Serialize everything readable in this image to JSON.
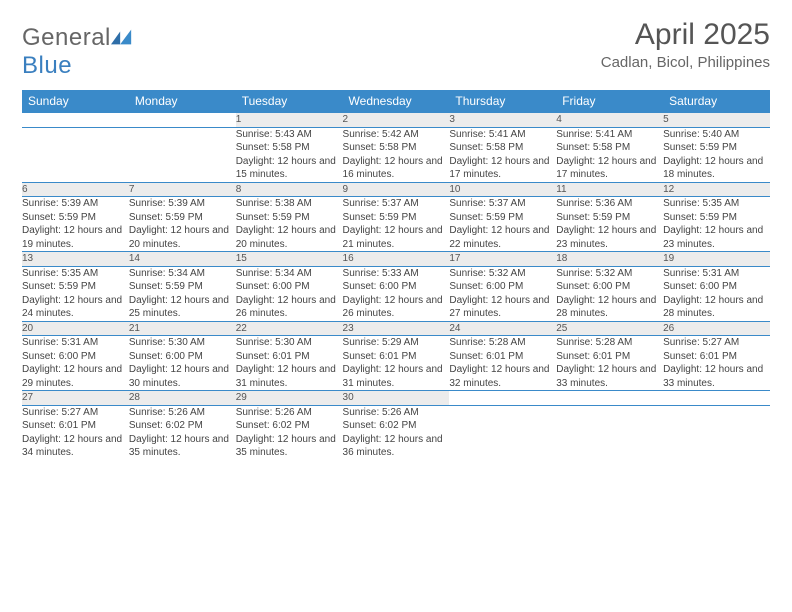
{
  "brand": {
    "part1": "General",
    "part2": "Blue"
  },
  "title": "April 2025",
  "location": "Cadlan, Bicol, Philippines",
  "colors": {
    "headerBar": "#3a8ac9",
    "dayNumBg": "#ececec",
    "rowBorder": "#3a8ac9",
    "text": "#444444",
    "titleText": "#555555"
  },
  "dayHeaders": [
    "Sunday",
    "Monday",
    "Tuesday",
    "Wednesday",
    "Thursday",
    "Friday",
    "Saturday"
  ],
  "weeks": [
    [
      null,
      null,
      {
        "n": "1",
        "sr": "Sunrise: 5:43 AM",
        "ss": "Sunset: 5:58 PM",
        "dl": "Daylight: 12 hours and 15 minutes."
      },
      {
        "n": "2",
        "sr": "Sunrise: 5:42 AM",
        "ss": "Sunset: 5:58 PM",
        "dl": "Daylight: 12 hours and 16 minutes."
      },
      {
        "n": "3",
        "sr": "Sunrise: 5:41 AM",
        "ss": "Sunset: 5:58 PM",
        "dl": "Daylight: 12 hours and 17 minutes."
      },
      {
        "n": "4",
        "sr": "Sunrise: 5:41 AM",
        "ss": "Sunset: 5:58 PM",
        "dl": "Daylight: 12 hours and 17 minutes."
      },
      {
        "n": "5",
        "sr": "Sunrise: 5:40 AM",
        "ss": "Sunset: 5:59 PM",
        "dl": "Daylight: 12 hours and 18 minutes."
      }
    ],
    [
      {
        "n": "6",
        "sr": "Sunrise: 5:39 AM",
        "ss": "Sunset: 5:59 PM",
        "dl": "Daylight: 12 hours and 19 minutes."
      },
      {
        "n": "7",
        "sr": "Sunrise: 5:39 AM",
        "ss": "Sunset: 5:59 PM",
        "dl": "Daylight: 12 hours and 20 minutes."
      },
      {
        "n": "8",
        "sr": "Sunrise: 5:38 AM",
        "ss": "Sunset: 5:59 PM",
        "dl": "Daylight: 12 hours and 20 minutes."
      },
      {
        "n": "9",
        "sr": "Sunrise: 5:37 AM",
        "ss": "Sunset: 5:59 PM",
        "dl": "Daylight: 12 hours and 21 minutes."
      },
      {
        "n": "10",
        "sr": "Sunrise: 5:37 AM",
        "ss": "Sunset: 5:59 PM",
        "dl": "Daylight: 12 hours and 22 minutes."
      },
      {
        "n": "11",
        "sr": "Sunrise: 5:36 AM",
        "ss": "Sunset: 5:59 PM",
        "dl": "Daylight: 12 hours and 23 minutes."
      },
      {
        "n": "12",
        "sr": "Sunrise: 5:35 AM",
        "ss": "Sunset: 5:59 PM",
        "dl": "Daylight: 12 hours and 23 minutes."
      }
    ],
    [
      {
        "n": "13",
        "sr": "Sunrise: 5:35 AM",
        "ss": "Sunset: 5:59 PM",
        "dl": "Daylight: 12 hours and 24 minutes."
      },
      {
        "n": "14",
        "sr": "Sunrise: 5:34 AM",
        "ss": "Sunset: 5:59 PM",
        "dl": "Daylight: 12 hours and 25 minutes."
      },
      {
        "n": "15",
        "sr": "Sunrise: 5:34 AM",
        "ss": "Sunset: 6:00 PM",
        "dl": "Daylight: 12 hours and 26 minutes."
      },
      {
        "n": "16",
        "sr": "Sunrise: 5:33 AM",
        "ss": "Sunset: 6:00 PM",
        "dl": "Daylight: 12 hours and 26 minutes."
      },
      {
        "n": "17",
        "sr": "Sunrise: 5:32 AM",
        "ss": "Sunset: 6:00 PM",
        "dl": "Daylight: 12 hours and 27 minutes."
      },
      {
        "n": "18",
        "sr": "Sunrise: 5:32 AM",
        "ss": "Sunset: 6:00 PM",
        "dl": "Daylight: 12 hours and 28 minutes."
      },
      {
        "n": "19",
        "sr": "Sunrise: 5:31 AM",
        "ss": "Sunset: 6:00 PM",
        "dl": "Daylight: 12 hours and 28 minutes."
      }
    ],
    [
      {
        "n": "20",
        "sr": "Sunrise: 5:31 AM",
        "ss": "Sunset: 6:00 PM",
        "dl": "Daylight: 12 hours and 29 minutes."
      },
      {
        "n": "21",
        "sr": "Sunrise: 5:30 AM",
        "ss": "Sunset: 6:00 PM",
        "dl": "Daylight: 12 hours and 30 minutes."
      },
      {
        "n": "22",
        "sr": "Sunrise: 5:30 AM",
        "ss": "Sunset: 6:01 PM",
        "dl": "Daylight: 12 hours and 31 minutes."
      },
      {
        "n": "23",
        "sr": "Sunrise: 5:29 AM",
        "ss": "Sunset: 6:01 PM",
        "dl": "Daylight: 12 hours and 31 minutes."
      },
      {
        "n": "24",
        "sr": "Sunrise: 5:28 AM",
        "ss": "Sunset: 6:01 PM",
        "dl": "Daylight: 12 hours and 32 minutes."
      },
      {
        "n": "25",
        "sr": "Sunrise: 5:28 AM",
        "ss": "Sunset: 6:01 PM",
        "dl": "Daylight: 12 hours and 33 minutes."
      },
      {
        "n": "26",
        "sr": "Sunrise: 5:27 AM",
        "ss": "Sunset: 6:01 PM",
        "dl": "Daylight: 12 hours and 33 minutes."
      }
    ],
    [
      {
        "n": "27",
        "sr": "Sunrise: 5:27 AM",
        "ss": "Sunset: 6:01 PM",
        "dl": "Daylight: 12 hours and 34 minutes."
      },
      {
        "n": "28",
        "sr": "Sunrise: 5:26 AM",
        "ss": "Sunset: 6:02 PM",
        "dl": "Daylight: 12 hours and 35 minutes."
      },
      {
        "n": "29",
        "sr": "Sunrise: 5:26 AM",
        "ss": "Sunset: 6:02 PM",
        "dl": "Daylight: 12 hours and 35 minutes."
      },
      {
        "n": "30",
        "sr": "Sunrise: 5:26 AM",
        "ss": "Sunset: 6:02 PM",
        "dl": "Daylight: 12 hours and 36 minutes."
      },
      null,
      null,
      null
    ]
  ]
}
